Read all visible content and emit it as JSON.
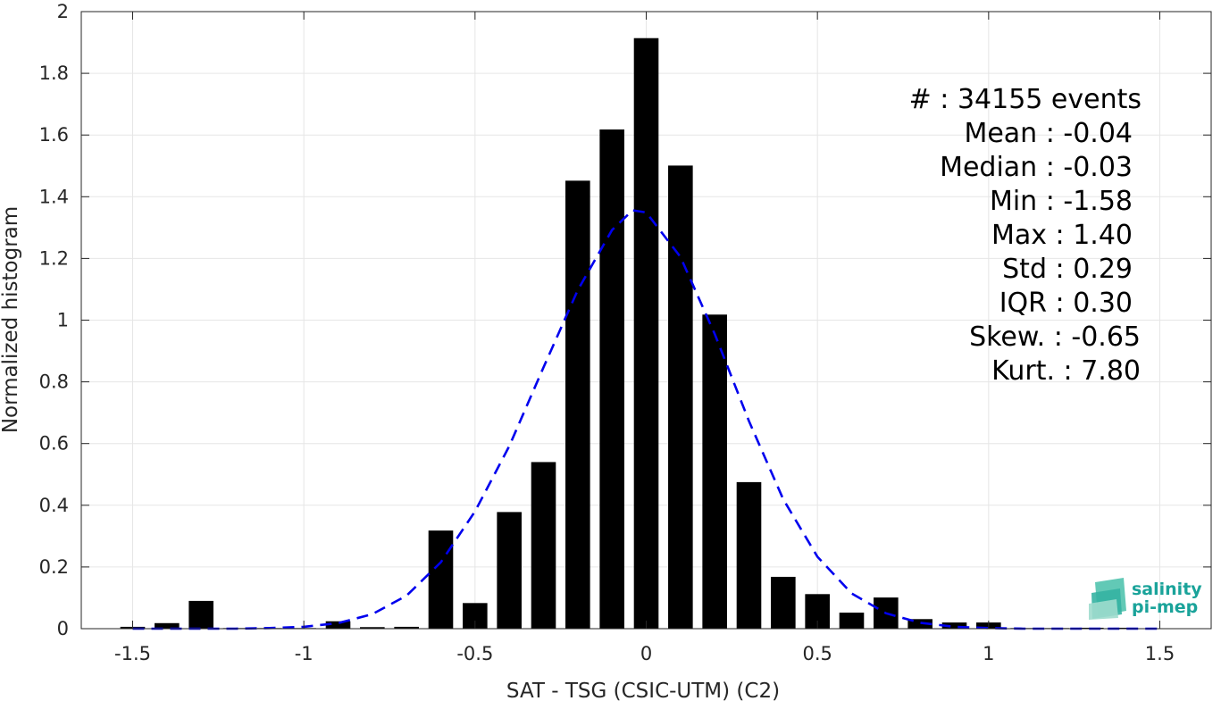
{
  "chart_data": {
    "type": "bar",
    "xlabel": "SAT - TSG (CSIC-UTM) (C2)",
    "ylabel": "Normalized histogram",
    "xlim": [
      -1.65,
      1.65
    ],
    "ylim": [
      0,
      2
    ],
    "x_ticks": [
      -1.5,
      -1,
      -0.5,
      0,
      0.5,
      1,
      1.5
    ],
    "x_tick_labels": [
      "-1.5",
      "-1",
      "-0.5",
      "0",
      "0.5",
      "1",
      "1.5"
    ],
    "y_ticks": [
      0,
      0.2,
      0.4,
      0.6,
      0.8,
      1,
      1.2,
      1.4,
      1.6,
      1.8,
      2
    ],
    "y_tick_labels": [
      "0",
      "0.2",
      "0.4",
      "0.6",
      "0.8",
      "1",
      "1.2",
      "1.4",
      "1.6",
      "1.8",
      "2"
    ],
    "grid": true,
    "bar_color": "#000000",
    "bin_width": 0.1,
    "bins": {
      "x": [
        -1.5,
        -1.4,
        -1.3,
        -1.2,
        -1.1,
        -1.0,
        -0.9,
        -0.8,
        -0.7,
        -0.6,
        -0.5,
        -0.4,
        -0.3,
        -0.2,
        -0.1,
        0.0,
        0.1,
        0.2,
        0.3,
        0.4,
        0.5,
        0.6,
        0.7,
        0.8,
        0.9,
        1.0,
        1.1,
        1.2,
        1.3,
        1.4
      ],
      "values": [
        0.006,
        0.018,
        0.09,
        0.002,
        0.002,
        0.002,
        0.024,
        0.005,
        0.006,
        0.318,
        0.083,
        0.378,
        0.54,
        1.452,
        1.618,
        1.914,
        1.501,
        1.018,
        0.475,
        0.168,
        0.112,
        0.052,
        0.101,
        0.031,
        0.02,
        0.02,
        0.002,
        0.002,
        0.003,
        0.003
      ]
    },
    "fit": {
      "style": "dashed",
      "color": "#0000ee",
      "x": [
        -1.5,
        -1.4,
        -1.3,
        -1.2,
        -1.1,
        -1.0,
        -0.9,
        -0.8,
        -0.7,
        -0.6,
        -0.5,
        -0.4,
        -0.3,
        -0.2,
        -0.1,
        -0.04,
        0.0,
        0.1,
        0.2,
        0.3,
        0.4,
        0.5,
        0.6,
        0.7,
        0.8,
        0.9,
        1.0,
        1.1,
        1.2,
        1.3,
        1.4,
        1.5
      ],
      "y": [
        0.0,
        0.0,
        0.0,
        0.0,
        0.002,
        0.006,
        0.018,
        0.047,
        0.107,
        0.215,
        0.38,
        0.592,
        0.847,
        1.097,
        1.292,
        1.356,
        1.349,
        1.205,
        0.955,
        0.673,
        0.42,
        0.233,
        0.114,
        0.05,
        0.019,
        0.006,
        0.002,
        0.0,
        0.0,
        0.0,
        0.0,
        0.0
      ]
    }
  },
  "stats": [
    {
      "label": "#",
      "value": ": 34155 events"
    },
    {
      "label": "Mean",
      "value": ": -0.04"
    },
    {
      "label": "Median",
      "value": ": -0.03"
    },
    {
      "label": "Min",
      "value": ": -1.58"
    },
    {
      "label": "Max",
      "value": ": 1.40"
    },
    {
      "label": "Std",
      "value": ": 0.29"
    },
    {
      "label": "IQR",
      "value": ": 0.30"
    },
    {
      "label": "Skew.",
      "value": ": -0.65"
    },
    {
      "label": "Kurt.",
      "value": ": 7.80"
    }
  ],
  "logo": {
    "line1": "salinity",
    "line2": "pi-mep",
    "color": "#1aa39a"
  }
}
